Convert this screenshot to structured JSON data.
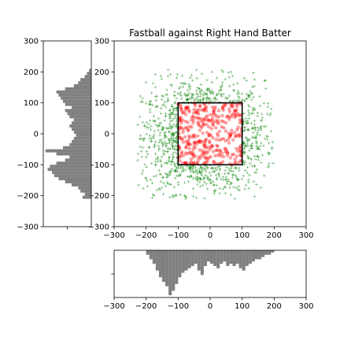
{
  "chart_data": {
    "type": "scatter",
    "title": "Fastball against Right Hand Batter",
    "xlabel": "",
    "ylabel": "",
    "xlim": [
      -300,
      300
    ],
    "ylim": [
      -300,
      300
    ],
    "xticks": [
      "−300",
      "−200",
      "−100",
      "0",
      "100",
      "200",
      "300"
    ],
    "yticks": [
      "300",
      "200",
      "100",
      "0",
      "−100",
      "−200",
      "−300"
    ],
    "grid": false,
    "strike_zone": {
      "x": [
        -100,
        100
      ],
      "y": [
        -100,
        100
      ],
      "color": "#000000"
    },
    "series": [
      {
        "kind": "points",
        "marker": "circle",
        "color": "#ff0000",
        "region": "inside strike zone",
        "x_range": [
          -100,
          100
        ],
        "y_range": [
          -100,
          100
        ]
      },
      {
        "kind": "points",
        "marker": "plus",
        "color": "#008000",
        "region": "outside strike zone",
        "x_range": [
          -230,
          200
        ],
        "y_range": [
          -210,
          210
        ]
      }
    ],
    "histograms": {
      "color": "#808080",
      "x_histogram": {
        "position": "bottom",
        "bins": [
          -200,
          -190,
          -180,
          -170,
          -160,
          -150,
          -140,
          -130,
          -120,
          -110,
          -100,
          -90,
          -80,
          -70,
          -60,
          -50,
          -40,
          -30,
          -20,
          -10,
          0,
          10,
          20,
          30,
          40,
          50,
          60,
          70,
          80,
          90,
          100,
          110,
          120,
          130,
          140,
          150,
          160,
          170,
          180,
          190,
          200
        ],
        "counts": [
          2,
          4,
          6,
          9,
          12,
          14,
          16,
          20,
          18,
          15,
          12,
          10,
          9,
          8,
          7,
          6,
          9,
          11,
          7,
          5,
          6,
          7,
          8,
          6,
          5,
          7,
          6,
          7,
          6,
          8,
          9,
          7,
          6,
          5,
          4,
          4,
          3,
          2,
          2,
          1
        ],
        "max_count": 21
      },
      "y_histogram": {
        "position": "left",
        "bins": [
          -210,
          -200,
          -190,
          -180,
          -170,
          -160,
          -150,
          -140,
          -130,
          -120,
          -110,
          -100,
          -90,
          -80,
          -70,
          -60,
          -50,
          -40,
          -30,
          -20,
          -10,
          0,
          10,
          20,
          30,
          40,
          50,
          60,
          70,
          80,
          90,
          100,
          110,
          120,
          130,
          140,
          150,
          160,
          170,
          180,
          190,
          200,
          210
        ],
        "counts": [
          4,
          3,
          5,
          6,
          9,
          12,
          15,
          17,
          18,
          20,
          19,
          16,
          12,
          10,
          16,
          21,
          13,
          10,
          9,
          8,
          7,
          8,
          9,
          10,
          9,
          8,
          10,
          11,
          12,
          9,
          12,
          13,
          14,
          15,
          16,
          12,
          8,
          6,
          5,
          3,
          2,
          1
        ],
        "max_count": 22
      }
    }
  }
}
